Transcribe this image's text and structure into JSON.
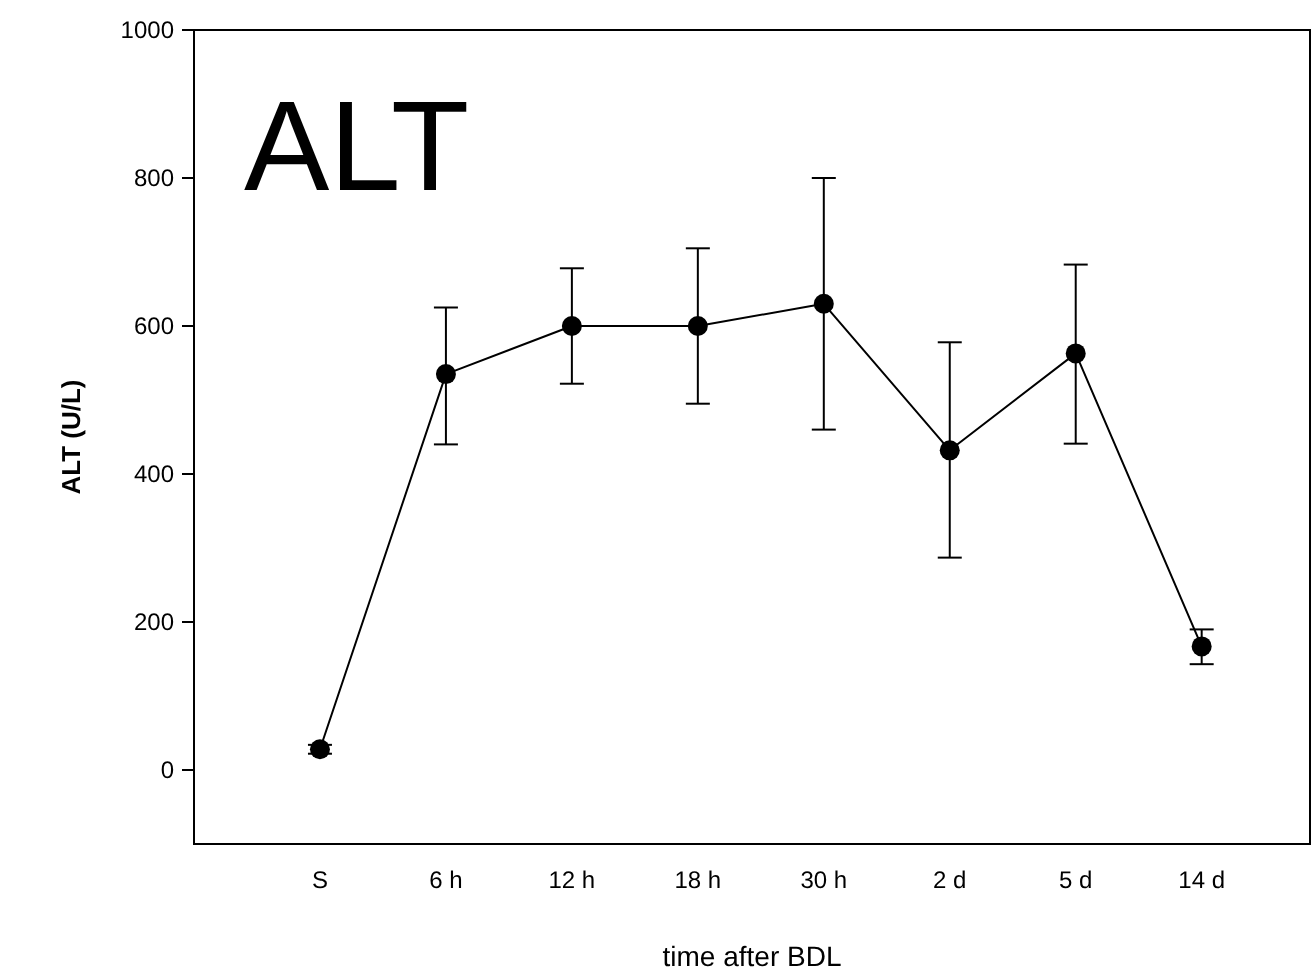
{
  "chart_data": {
    "type": "line",
    "title": "ALT",
    "xlabel": "time after BDL",
    "ylabel": "ALT (U/L)",
    "categories": [
      "S",
      "6 h",
      "12 h",
      "18 h",
      "30 h",
      "2 d",
      "5 d",
      "14 d"
    ],
    "series": [
      {
        "color": "#000000",
        "values": [
          28,
          535,
          600,
          600,
          630,
          432,
          563,
          167
        ],
        "errors": [
          [
            22,
            34
          ],
          [
            440,
            625
          ],
          [
            522,
            678
          ],
          [
            495,
            705
          ],
          [
            460,
            800
          ],
          [
            287,
            578
          ],
          [
            441,
            683
          ],
          [
            143,
            190
          ]
        ]
      }
    ],
    "ylim": [
      -100,
      1000
    ],
    "yticks": [
      0,
      200,
      400,
      600,
      800,
      1000
    ],
    "marker": "circle",
    "line_style": "solid"
  }
}
